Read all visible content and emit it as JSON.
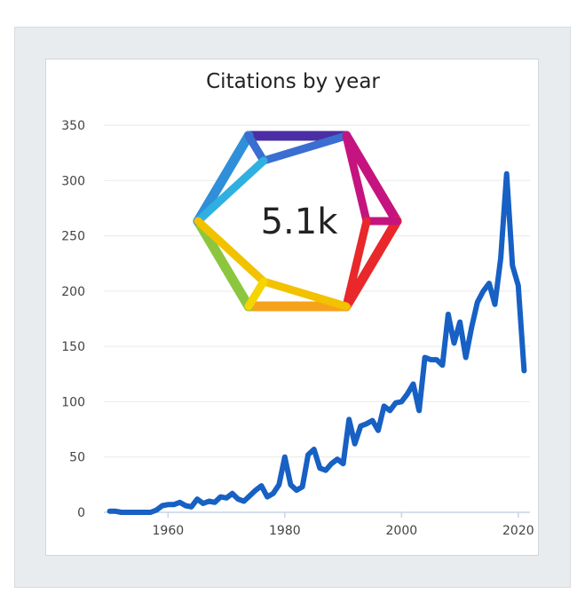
{
  "chart_data": {
    "type": "line",
    "title": "Citations by year",
    "xlabel": "",
    "ylabel": "",
    "xlim": [
      1949,
      2022
    ],
    "ylim": [
      0,
      350
    ],
    "x_ticks": [
      1960,
      1980,
      2000,
      2020
    ],
    "y_ticks": [
      0,
      50,
      100,
      150,
      200,
      250,
      300,
      350
    ],
    "grid": "horizontal",
    "legend": "none",
    "line_color": "#1760c4",
    "series": [
      {
        "x": [
          1950,
          1951,
          1952,
          1953,
          1954,
          1955,
          1956,
          1957,
          1958,
          1959,
          1960,
          1961,
          1962,
          1963,
          1964,
          1965,
          1966,
          1967,
          1968,
          1969,
          1970,
          1971,
          1972,
          1973,
          1974,
          1975,
          1976,
          1977,
          1978,
          1979,
          1980,
          1981,
          1982,
          1983,
          1984,
          1985,
          1986,
          1987,
          1988,
          1989,
          1990,
          1991,
          1992,
          1993,
          1994,
          1995,
          1996,
          1997,
          1998,
          1999,
          2000,
          2001,
          2002,
          2003,
          2004,
          2005,
          2006,
          2007,
          2008,
          2009,
          2010,
          2011,
          2012,
          2013,
          2014,
          2015,
          2016,
          2017,
          2018,
          2019,
          2020,
          2021
        ],
        "values": [
          1,
          1,
          0,
          0,
          0,
          0,
          0,
          0,
          2,
          6,
          7,
          7,
          9,
          6,
          5,
          12,
          8,
          10,
          9,
          14,
          13,
          17,
          12,
          10,
          15,
          20,
          24,
          14,
          17,
          25,
          50,
          25,
          20,
          23,
          52,
          57,
          40,
          38,
          44,
          48,
          44,
          84,
          62,
          78,
          80,
          83,
          74,
          96,
          92,
          99,
          100,
          107,
          116,
          92,
          140,
          138,
          138,
          133,
          179,
          153,
          172,
          140,
          167,
          190,
          200,
          207,
          188,
          230,
          306,
          223,
          205,
          128
        ]
      }
    ],
    "badge": {
      "value_text": "5.1k",
      "gradient_colors": [
        "#2a6fd6",
        "#3cb3e6",
        "#7bc142",
        "#f5d400",
        "#f7a21b",
        "#e8282b",
        "#d3118a",
        "#5a2aa6"
      ]
    }
  }
}
